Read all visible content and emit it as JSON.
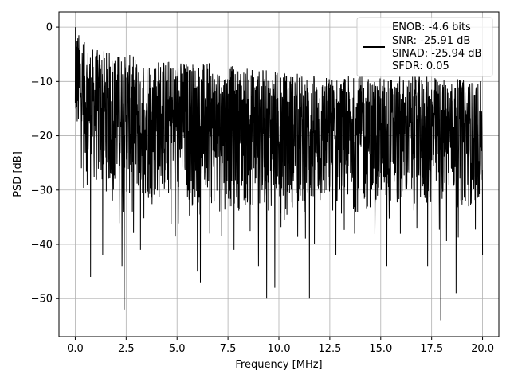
{
  "chart_data": {
    "type": "line",
    "title": "",
    "xlabel": "Frequency [MHz]",
    "ylabel": "PSD [dB]",
    "xlim": [
      -0.8,
      20.8
    ],
    "ylim": [
      -57,
      2.8
    ],
    "grid": true,
    "legend_position": "top-right",
    "xticks": [
      0.0,
      2.5,
      5.0,
      7.5,
      10.0,
      12.5,
      15.0,
      17.5,
      20.0
    ],
    "xtick_labels": [
      "0.0",
      "2.5",
      "5.0",
      "7.5",
      "10.0",
      "12.5",
      "15.0",
      "17.5",
      "20.0"
    ],
    "yticks": [
      0,
      -10,
      -20,
      -30,
      -40,
      -50
    ],
    "ytick_labels": [
      "0",
      "−10",
      "−20",
      "−30",
      "−40",
      "−50"
    ],
    "series": [
      {
        "color": "#000000",
        "x_range": [
          0,
          20
        ],
        "approx_points": 2048,
        "envelope": {
          "x": [
            0.0,
            0.5,
            1.0,
            2.5,
            5.0,
            7.5,
            10.0,
            12.5,
            15.0,
            17.5,
            20.0
          ],
          "upper": [
            0,
            -3,
            -4,
            -5,
            -6,
            -7,
            -8,
            -9,
            -9,
            -9,
            -10
          ],
          "lower": [
            -20,
            -27,
            -30,
            -32,
            -33,
            -34,
            -34,
            -35,
            -34,
            -34,
            -33
          ]
        },
        "deep_nulls": [
          {
            "x": 0.75,
            "y": -46
          },
          {
            "x": 1.35,
            "y": -42
          },
          {
            "x": 2.3,
            "y": -44
          },
          {
            "x": 2.4,
            "y": -52
          },
          {
            "x": 3.2,
            "y": -41
          },
          {
            "x": 6.0,
            "y": -45
          },
          {
            "x": 6.15,
            "y": -47
          },
          {
            "x": 7.8,
            "y": -41
          },
          {
            "x": 9.0,
            "y": -44
          },
          {
            "x": 9.4,
            "y": -50
          },
          {
            "x": 9.8,
            "y": -48
          },
          {
            "x": 11.5,
            "y": -50
          },
          {
            "x": 12.8,
            "y": -42
          },
          {
            "x": 15.3,
            "y": -44
          },
          {
            "x": 17.3,
            "y": -44
          },
          {
            "x": 17.95,
            "y": -54
          },
          {
            "x": 18.7,
            "y": -49
          },
          {
            "x": 20.0,
            "y": -42
          }
        ]
      }
    ],
    "legend": {
      "lines": [
        "ENOB: -4.6 bits",
        "SNR: -25.91 dB",
        "SINAD: -25.94 dB",
        "SFDR: 0.05"
      ]
    }
  },
  "colors": {
    "line": "#000000",
    "grid": "#b0b0b0",
    "axes": "#000000",
    "legend_border": "#cccccc"
  }
}
